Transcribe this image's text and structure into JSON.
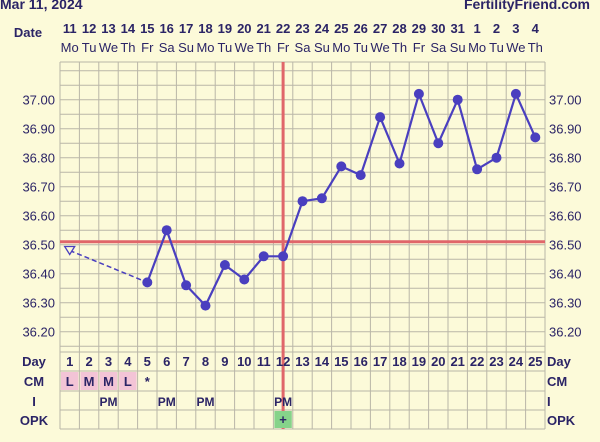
{
  "header": {
    "date_text": "Mar 11, 2024",
    "site_text": "FertilityFriend.com",
    "date_row_label": "Date"
  },
  "colors": {
    "background": "#fcfad9",
    "grid": "#b9b6a8",
    "text": "#2b2466",
    "series": "#4a3fbf",
    "reference_line": "#e0666a",
    "cm_highlight": "#f3c4d6",
    "opk_positive": "#86d38a"
  },
  "chart_data": {
    "type": "line",
    "x": [
      1,
      2,
      3,
      4,
      5,
      6,
      7,
      8,
      9,
      10,
      11,
      12,
      13,
      14,
      15,
      16,
      17,
      18,
      19,
      20,
      21,
      22,
      23,
      24,
      25
    ],
    "dates": [
      "11",
      "12",
      "13",
      "14",
      "15",
      "16",
      "17",
      "18",
      "19",
      "20",
      "21",
      "22",
      "23",
      "24",
      "25",
      "26",
      "27",
      "28",
      "29",
      "30",
      "31",
      "1",
      "2",
      "3",
      "4"
    ],
    "weekdays": [
      "Mo",
      "Tu",
      "We",
      "Th",
      "Fr",
      "Sa",
      "Su",
      "Mo",
      "Tu",
      "We",
      "Th",
      "Fr",
      "Sa",
      "Su",
      "Mo",
      "Tu",
      "We",
      "Th",
      "Fr",
      "Sa",
      "Su",
      "Mo",
      "Tu",
      "We",
      "Th"
    ],
    "series": [
      {
        "values": [
          36.48,
          null,
          null,
          null,
          36.37,
          36.55,
          36.36,
          36.29,
          36.43,
          36.38,
          36.46,
          36.46,
          36.65,
          36.66,
          36.77,
          36.74,
          36.94,
          36.78,
          37.02,
          36.85,
          37.0,
          36.76,
          36.8,
          37.02,
          36.87
        ],
        "excluded_points": [
          1
        ]
      }
    ],
    "ylim": [
      36.13,
      37.13
    ],
    "yticks": [
      "37.00",
      "36.90",
      "36.80",
      "36.70",
      "36.60",
      "36.50",
      "36.40",
      "36.30",
      "36.20"
    ],
    "coverline": 36.51,
    "ovulation_day": 12,
    "xlabel": "Day",
    "ylabel": ""
  },
  "rows": {
    "day_label": "Day",
    "cm_label": "CM",
    "i_label": "I",
    "opk_label": "OPK",
    "cm": [
      "L",
      "M",
      "M",
      "L",
      "*",
      "",
      "",
      "",
      "",
      "",
      "",
      "",
      "",
      "",
      "",
      "",
      "",
      "",
      "",
      "",
      "",
      "",
      "",
      "",
      ""
    ],
    "i": [
      "",
      "",
      "PM",
      "",
      "",
      "PM",
      "",
      "PM",
      "",
      "",
      "",
      "PM",
      "",
      "",
      "",
      "",
      "",
      "",
      "",
      "",
      "",
      "",
      "",
      "",
      ""
    ],
    "opk": [
      "",
      "",
      "",
      "",
      "",
      "",
      "",
      "",
      "",
      "",
      "",
      "+",
      "",
      "",
      "",
      "",
      "",
      "",
      "",
      "",
      "",
      "",
      "",
      "",
      ""
    ]
  }
}
